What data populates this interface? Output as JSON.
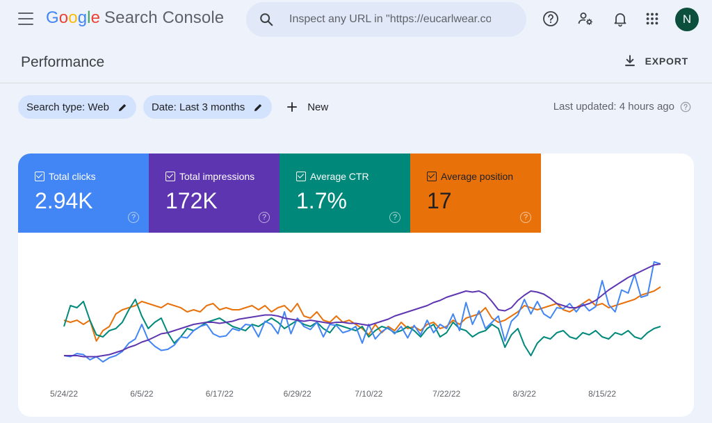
{
  "header": {
    "menu_icon": "hamburger-menu-icon",
    "logo_google": "Google",
    "logo_product": "Search Console",
    "search_placeholder": "Inspect any URL in \"https://eucarlwear.com/\"",
    "icons": [
      "help-icon",
      "manage-users-icon",
      "notifications-icon",
      "apps-grid-icon"
    ],
    "avatar_initial": "N"
  },
  "page": {
    "title": "Performance",
    "export_label": "EXPORT"
  },
  "filters": {
    "search_type": "Search type: Web",
    "date": "Date: Last 3 months",
    "new_label": "New",
    "last_updated": "Last updated: 4 hours ago"
  },
  "metrics": [
    {
      "label": "Total clicks",
      "value": "2.94K",
      "color": "#4285f4",
      "checked": true
    },
    {
      "label": "Total impressions",
      "value": "172K",
      "color": "#5e35b1",
      "checked": true
    },
    {
      "label": "Average CTR",
      "value": "1.7%",
      "color": "#00897b",
      "checked": true
    },
    {
      "label": "Average position",
      "value": "17",
      "color": "#e8710a",
      "checked": true
    }
  ],
  "chart_data": {
    "type": "line",
    "x_tick_labels": [
      "5/24/22",
      "6/5/22",
      "6/17/22",
      "6/29/22",
      "7/10/22",
      "7/22/22",
      "8/3/22",
      "8/15/22"
    ],
    "x_tick_index": [
      0,
      12,
      24,
      36,
      47,
      59,
      71,
      83
    ],
    "grid": false,
    "legend": "none",
    "y_scale": "normalized per series (0-100)",
    "series": [
      {
        "name": "Total clicks",
        "color": "#4285f4",
        "values": [
          12,
          11,
          14,
          13,
          8,
          11,
          6,
          10,
          12,
          16,
          24,
          28,
          42,
          27,
          21,
          17,
          18,
          22,
          30,
          29,
          36,
          40,
          42,
          33,
          30,
          31,
          38,
          36,
          42,
          41,
          30,
          45,
          42,
          33,
          54,
          33,
          48,
          40,
          37,
          44,
          30,
          42,
          41,
          34,
          36,
          40,
          24,
          42,
          28,
          35,
          39,
          33,
          40,
          29,
          41,
          32,
          46,
          34,
          42,
          38,
          52,
          36,
          63,
          42,
          55,
          38,
          44,
          50,
          26,
          45,
          51,
          66,
          52,
          64,
          52,
          48,
          58,
          57,
          62,
          54,
          62,
          55,
          59,
          84,
          61,
          54,
          75,
          72,
          90,
          68,
          70,
          102,
          100
        ]
      },
      {
        "name": "Total impressions",
        "color": "#5e35b1",
        "values": [
          12,
          12,
          12,
          11,
          11,
          11,
          12,
          13,
          15,
          17,
          20,
          22,
          25,
          27,
          30,
          33,
          34,
          36,
          38,
          40,
          42,
          43,
          44,
          44,
          43,
          44,
          45,
          47,
          48,
          49,
          50,
          51,
          51,
          50,
          48,
          47,
          46,
          45,
          46,
          45,
          44,
          43,
          44,
          44,
          43,
          43,
          42,
          41,
          43,
          45,
          47,
          50,
          52,
          54,
          56,
          58,
          60,
          63,
          65,
          68,
          70,
          72,
          74,
          73,
          74,
          71,
          64,
          56,
          55,
          58,
          65,
          70,
          74,
          73,
          71,
          67,
          62,
          60,
          58,
          58,
          60,
          62,
          65,
          70,
          75,
          79,
          83,
          87,
          90,
          93,
          96,
          99,
          100
        ]
      },
      {
        "name": "Average CTR",
        "color": "#00897b",
        "values": [
          40,
          60,
          58,
          64,
          46,
          32,
          30,
          36,
          38,
          44,
          56,
          66,
          50,
          38,
          44,
          48,
          34,
          24,
          30,
          38,
          36,
          40,
          44,
          46,
          48,
          44,
          40,
          38,
          36,
          42,
          40,
          44,
          48,
          44,
          38,
          42,
          46,
          42,
          40,
          44,
          38,
          34,
          42,
          40,
          38,
          36,
          40,
          30,
          36,
          40,
          38,
          34,
          36,
          40,
          36,
          30,
          38,
          42,
          30,
          34,
          44,
          38,
          36,
          30,
          34,
          36,
          42,
          38,
          20,
          32,
          38,
          22,
          12,
          24,
          30,
          28,
          34,
          36,
          30,
          28,
          34,
          32,
          36,
          30,
          28,
          34,
          32,
          36,
          30,
          28,
          34,
          38,
          40
        ]
      },
      {
        "name": "Average position",
        "color": "#e8710a",
        "values": [
          46,
          44,
          46,
          42,
          46,
          26,
          36,
          40,
          52,
          56,
          58,
          60,
          64,
          62,
          60,
          58,
          62,
          60,
          58,
          54,
          56,
          54,
          60,
          62,
          56,
          58,
          56,
          56,
          58,
          60,
          56,
          60,
          54,
          58,
          60,
          54,
          62,
          50,
          48,
          54,
          46,
          44,
          50,
          44,
          46,
          42,
          38,
          32,
          42,
          34,
          40,
          36,
          44,
          38,
          40,
          36,
          42,
          44,
          38,
          40,
          46,
          42,
          48,
          50,
          52,
          58,
          48,
          44,
          46,
          50,
          54,
          60,
          58,
          56,
          58,
          60,
          62,
          56,
          54,
          58,
          62,
          66,
          60,
          62,
          58,
          60,
          62,
          64,
          66,
          70,
          72,
          74,
          78
        ]
      }
    ]
  }
}
